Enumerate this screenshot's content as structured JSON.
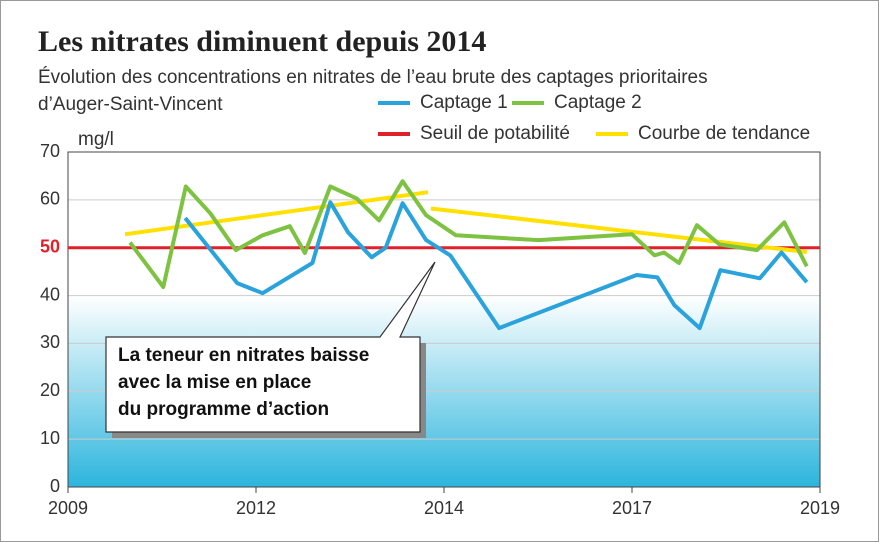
{
  "chart_data": {
    "type": "line",
    "title": "Les nitrates diminuent depuis 2014",
    "subtitle": [
      "Évolution des concentrations en nitrates de l’eau brute des captages prioritaires",
      "d’Auger-Saint-Vincent"
    ],
    "y_label": "mg/l",
    "xlim": [
      2009,
      2019
    ],
    "xticks": [
      2009,
      2012,
      2014,
      2017,
      2019
    ],
    "ylim": [
      0,
      70
    ],
    "yticks": [
      0,
      10,
      20,
      30,
      40,
      50,
      60,
      70
    ],
    "grid": true,
    "shade_below": 40,
    "threshold": {
      "name": "Seuil de potabilité",
      "value": 50,
      "color": "#e0202a"
    },
    "series": [
      {
        "name": "Captage 1",
        "color": "#2aa3dc",
        "x": [
          2010.87,
          2011.7,
          2012.07,
          2012.6,
          2012.79,
          2012.98,
          2013.23,
          2013.38,
          2013.56,
          2013.81,
          2014.1,
          2014.88,
          2017.05,
          2017.27,
          2017.45,
          2017.72,
          2017.94,
          2018.36,
          2018.59,
          2018.86
        ],
        "values": [
          56.2,
          42.6,
          40.5,
          46.8,
          59.5,
          53.2,
          48,
          50,
          59.3,
          51.6,
          48.4,
          33.2,
          44.3,
          43.8,
          38,
          33.2,
          45.3,
          43.6,
          49,
          42.8
        ]
      },
      {
        "name": "Captage 2",
        "color": "#7dc241",
        "x": [
          2009.99,
          2010.52,
          2010.88,
          2011.27,
          2011.68,
          2012.07,
          2012.36,
          2012.52,
          2012.79,
          2013.07,
          2013.31,
          2013.56,
          2013.81,
          2014.19,
          2015.51,
          2017.0,
          2017.24,
          2017.34,
          2017.5,
          2017.69,
          2017.93,
          2018.33,
          2018.62,
          2018.86
        ],
        "values": [
          51.1,
          41.8,
          62.8,
          57.2,
          49.5,
          52.6,
          54.5,
          48.9,
          62.8,
          60.3,
          55.7,
          63.9,
          56.8,
          52.6,
          51.6,
          52.8,
          48.4,
          49,
          46.8,
          54.7,
          50.7,
          49.5,
          55.3,
          46.1
        ]
      },
      {
        "name": "Courbe de tendance",
        "color": "#ffe000",
        "x": [
          2009.91,
          2013.83,
          2013.83,
          2013.86,
          2018.86
        ],
        "values": [
          52.8,
          61.6,
          null,
          58.2,
          49.1
        ]
      }
    ],
    "annotation": [
      "La teneur en nitrates baisse",
      "avec la mise en place",
      "du programme d’action"
    ]
  }
}
